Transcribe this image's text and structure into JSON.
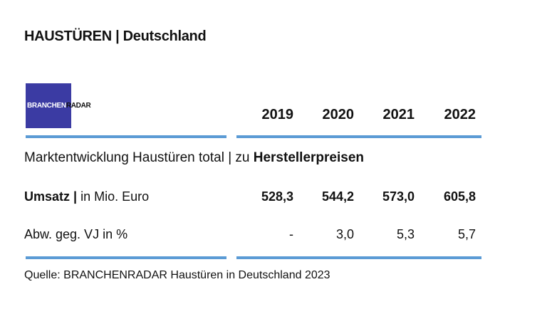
{
  "header": {
    "title": "HAUSTÜREN | Deutschland",
    "logo": {
      "part1": "BRANCHEN",
      "part2": "RADAR"
    }
  },
  "table": {
    "years": [
      "2019",
      "2020",
      "2021",
      "2022"
    ],
    "subtitle": {
      "text": "Marktentwicklung Haustüren total | zu",
      "bold": "Herstellerpreisen"
    },
    "rows": [
      {
        "label_bold": "Umsatz |",
        "label": "in Mio. Euro",
        "values": [
          "528,3",
          "544,2",
          "573,0",
          "605,8"
        ]
      },
      {
        "label_bold": null,
        "label": "Abw. geg. VJ in %",
        "values": [
          "-",
          "3,0",
          "5,3",
          "5,7"
        ]
      }
    ]
  },
  "footer": {
    "source": "Quelle: BRANCHENRADAR Haustüren in Deutschland 2023"
  }
}
